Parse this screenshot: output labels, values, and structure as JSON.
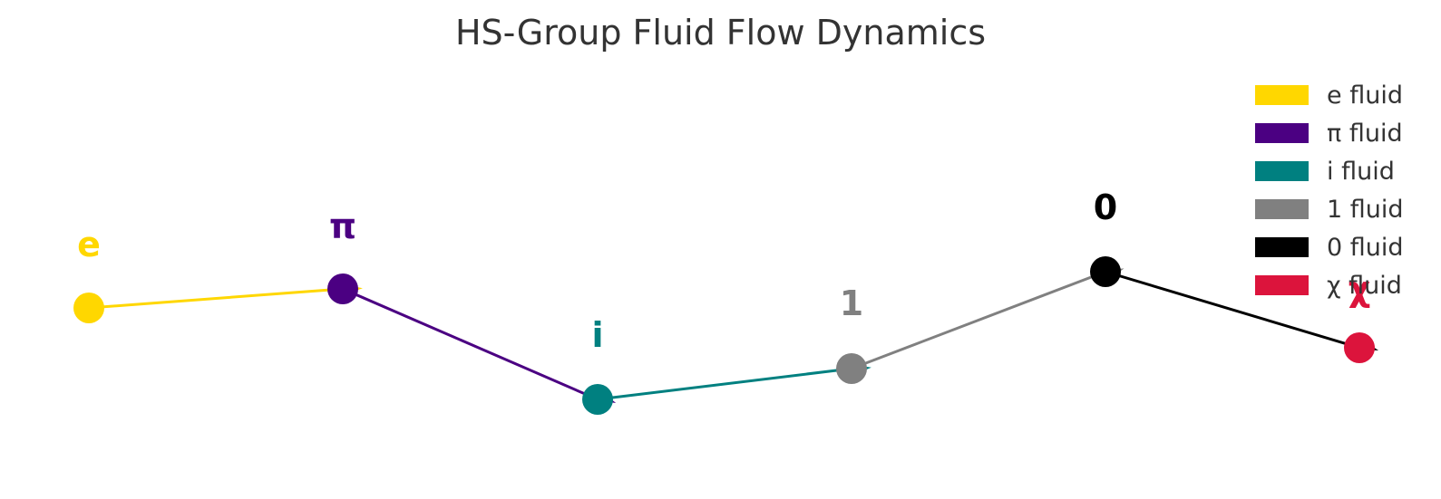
{
  "title": "HS-Group Fluid Flow Dynamics",
  "nodes": [
    {
      "id": "e",
      "label": "e",
      "color": "#FFD700"
    },
    {
      "id": "pi",
      "label": "π",
      "color": "#4B0082"
    },
    {
      "id": "i",
      "label": "i",
      "color": "#008080"
    },
    {
      "id": "1",
      "label": "1",
      "color": "#808080"
    },
    {
      "id": "0",
      "label": "0",
      "color": "#000000"
    },
    {
      "id": "chi",
      "label": "χ",
      "color": "#DC143C"
    }
  ],
  "edges": [
    {
      "from": "e",
      "to": "pi",
      "color": "#FFD700"
    },
    {
      "from": "pi",
      "to": "i",
      "color": "#4B0082"
    },
    {
      "from": "i",
      "to": "1",
      "color": "#008080"
    },
    {
      "from": "1",
      "to": "0",
      "color": "#808080"
    },
    {
      "from": "0",
      "to": "chi",
      "color": "#000000"
    }
  ],
  "legend": [
    {
      "label": "e fluid",
      "color": "#FFD700"
    },
    {
      "label": "π fluid",
      "color": "#4B0082"
    },
    {
      "label": "i fluid",
      "color": "#008080"
    },
    {
      "label": "1 fluid",
      "color": "#808080"
    },
    {
      "label": "0 fluid",
      "color": "#000000"
    },
    {
      "label": "χ fluid",
      "color": "#DC143C"
    }
  ]
}
